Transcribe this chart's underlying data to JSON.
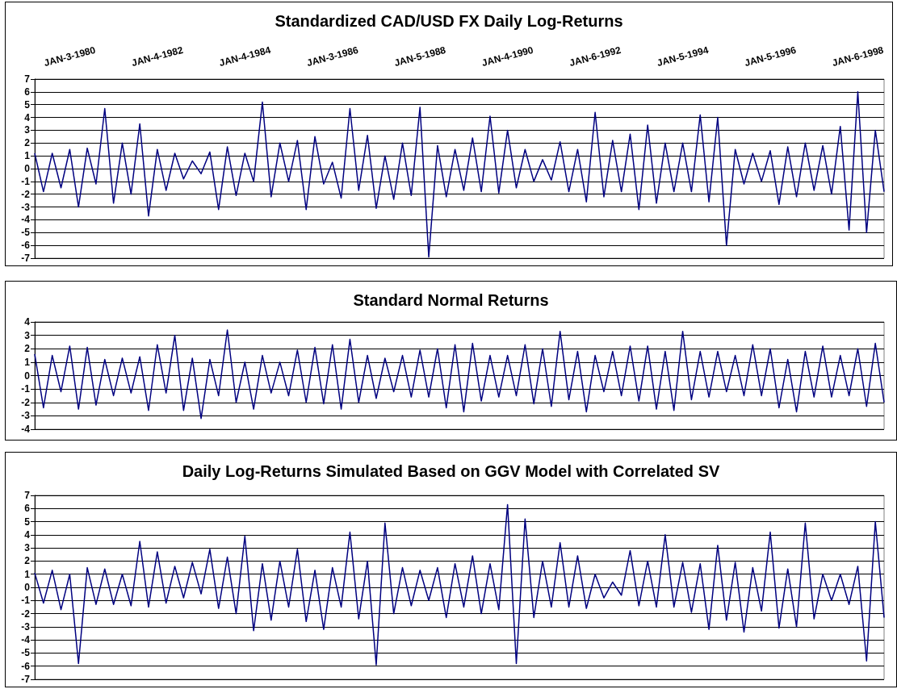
{
  "chart_data": [
    {
      "type": "line",
      "title": "Standardized CAD/USD FX Daily Log-Returns",
      "categories": [
        null,
        null,
        null,
        null,
        "JAN-3-1980",
        null,
        null,
        null,
        null,
        null,
        null,
        null,
        null,
        null,
        "JAN-4-1982",
        null,
        null,
        null,
        null,
        null,
        null,
        null,
        null,
        null,
        "JAN-4-1984",
        null,
        null,
        null,
        null,
        null,
        null,
        null,
        null,
        null,
        "JAN-3-1986",
        null,
        null,
        null,
        null,
        null,
        null,
        null,
        null,
        null,
        "JAN-5-1988",
        null,
        null,
        null,
        null,
        null,
        null,
        null,
        null,
        null,
        "JAN-4-1990",
        null,
        null,
        null,
        null,
        null,
        null,
        null,
        null,
        null,
        "JAN-6-1992",
        null,
        null,
        null,
        null,
        null,
        null,
        null,
        null,
        null,
        "JAN-5-1994",
        null,
        null,
        null,
        null,
        null,
        null,
        null,
        null,
        null,
        "JAN-5-1996",
        null,
        null,
        null,
        null,
        null,
        null,
        null,
        null,
        null,
        "JAN-6-1998",
        null,
        null,
        null
      ],
      "series": [
        {
          "color": "#000080",
          "values": [
            1.2,
            -1.8,
            1.2,
            -1.5,
            1.5,
            -3.0,
            1.6,
            -1.2,
            4.7,
            -2.7,
            2.0,
            -2.0,
            3.5,
            -3.7,
            1.5,
            -1.7,
            1.2,
            -0.8,
            0.6,
            -0.4,
            1.3,
            -3.2,
            1.7,
            -2.1,
            1.2,
            -1.0,
            5.2,
            -2.2,
            2.0,
            -1.0,
            2.2,
            -3.2,
            2.5,
            -1.2,
            0.5,
            -2.3,
            4.7,
            -1.7,
            2.6,
            -3.1,
            1.0,
            -2.4,
            2.0,
            -2.1,
            4.8,
            -6.9,
            1.8,
            -2.2,
            1.5,
            -1.7,
            2.4,
            -1.8,
            4.1,
            -1.9,
            3.0,
            -1.5,
            1.5,
            -1.0,
            0.7,
            -0.9,
            2.1,
            -1.8,
            1.5,
            -2.6,
            4.4,
            -2.2,
            2.2,
            -1.8,
            2.7,
            -3.2,
            3.4,
            -2.7,
            2.0,
            -1.8,
            2.0,
            -1.8,
            4.2,
            -2.6,
            4.0,
            -6.0,
            1.5,
            -1.2,
            1.2,
            -1.0,
            1.4,
            -2.8,
            1.7,
            -2.2,
            2.0,
            -1.7,
            1.8,
            -2.0,
            3.3,
            -4.8,
            6.0,
            -5.0,
            3.0,
            -1.8
          ]
        }
      ],
      "ylim": [
        -7,
        7
      ],
      "yticks": [
        -7,
        -6,
        -5,
        -4,
        -3,
        -2,
        -1,
        0,
        1,
        2,
        3,
        4,
        5,
        6,
        7
      ],
      "grid": "y"
    },
    {
      "type": "line",
      "title": "Standard Normal Returns",
      "categories": [
        null,
        null,
        null,
        null,
        null,
        null,
        null,
        null,
        null,
        null,
        null,
        null,
        null,
        null,
        null,
        null,
        null,
        null,
        null,
        null,
        null,
        null,
        null,
        null,
        null,
        null,
        null,
        null,
        null,
        null,
        null,
        null,
        null,
        null,
        null,
        null,
        null,
        null,
        null,
        null,
        null,
        null,
        null,
        null,
        null,
        null,
        null,
        null,
        null,
        null,
        null,
        null,
        null,
        null,
        null,
        null,
        null,
        null,
        null,
        null,
        null,
        null,
        null,
        null,
        null,
        null,
        null,
        null,
        null,
        null,
        null,
        null,
        null,
        null,
        null,
        null,
        null,
        null,
        null,
        null,
        null,
        null,
        null,
        null,
        null,
        null,
        null,
        null,
        null,
        null,
        null,
        null,
        null,
        null,
        null,
        null,
        null,
        null
      ],
      "series": [
        {
          "color": "#000080",
          "values": [
            1.6,
            -2.4,
            1.5,
            -1.2,
            2.2,
            -2.5,
            2.1,
            -2.2,
            1.2,
            -1.5,
            1.3,
            -1.3,
            1.4,
            -2.6,
            2.3,
            -1.3,
            3.0,
            -2.6,
            1.3,
            -3.2,
            1.2,
            -1.5,
            3.4,
            -2.0,
            1.0,
            -2.5,
            1.5,
            -1.3,
            1.0,
            -1.5,
            1.9,
            -2.0,
            2.1,
            -2.1,
            2.3,
            -2.5,
            2.7,
            -2.0,
            1.5,
            -1.7,
            1.3,
            -1.2,
            1.5,
            -1.6,
            1.9,
            -1.6,
            2.0,
            -2.4,
            2.3,
            -2.7,
            2.4,
            -1.9,
            1.5,
            -1.6,
            1.5,
            -1.5,
            2.3,
            -2.1,
            2.0,
            -2.3,
            3.3,
            -1.8,
            1.8,
            -2.7,
            1.5,
            -1.2,
            1.8,
            -1.5,
            2.2,
            -1.9,
            2.2,
            -2.5,
            1.8,
            -2.6,
            3.3,
            -1.8,
            1.8,
            -1.6,
            1.8,
            -1.2,
            1.5,
            -1.5,
            2.3,
            -1.5,
            2.0,
            -2.4,
            1.2,
            -2.7,
            1.8,
            -1.6,
            2.2,
            -1.6,
            1.5,
            -1.5,
            2.0,
            -2.3,
            2.4,
            -2.0
          ]
        }
      ],
      "ylim": [
        -4,
        4
      ],
      "yticks": [
        -4,
        -3,
        -2,
        -1,
        0,
        1,
        2,
        3,
        4
      ],
      "grid": "y",
      "tick_labels": "y"
    },
    {
      "type": "line",
      "title": "Daily Log-Returns Simulated Based on GGV Model with Correlated SV",
      "categories": [
        null,
        null,
        null,
        null,
        null,
        null,
        null,
        null,
        null,
        null,
        null,
        null,
        null,
        null,
        null,
        null,
        null,
        null,
        null,
        null,
        null,
        null,
        null,
        null,
        null,
        null,
        null,
        null,
        null,
        null,
        null,
        null,
        null,
        null,
        null,
        null,
        null,
        null,
        null,
        null,
        null,
        null,
        null,
        null,
        null,
        null,
        null,
        null,
        null,
        null,
        null,
        null,
        null,
        null,
        null,
        null,
        null,
        null,
        null,
        null,
        null,
        null,
        null,
        null,
        null,
        null,
        null,
        null,
        null,
        null,
        null,
        null,
        null,
        null,
        null,
        null,
        null,
        null,
        null,
        null,
        null,
        null,
        null,
        null,
        null,
        null,
        null,
        null,
        null,
        null,
        null,
        null,
        null,
        null,
        null,
        null,
        null,
        null
      ],
      "series": [
        {
          "color": "#000080",
          "values": [
            1.1,
            -1.2,
            1.3,
            -1.7,
            1.0,
            -5.8,
            1.5,
            -1.3,
            1.4,
            -1.3,
            1.0,
            -1.4,
            3.5,
            -1.5,
            2.7,
            -1.2,
            1.6,
            -0.8,
            1.9,
            -0.5,
            2.9,
            -1.6,
            2.3,
            -2.0,
            3.9,
            -3.3,
            1.8,
            -2.5,
            2.0,
            -1.5,
            2.9,
            -2.6,
            1.3,
            -3.2,
            1.5,
            -1.5,
            4.2,
            -2.4,
            2.0,
            -5.9,
            4.9,
            -2.0,
            1.5,
            -1.4,
            1.3,
            -1.0,
            1.5,
            -2.3,
            1.8,
            -1.5,
            2.4,
            -2.0,
            1.8,
            -1.7,
            6.3,
            -5.8,
            5.2,
            -2.3,
            2.0,
            -1.5,
            3.4,
            -1.5,
            2.4,
            -1.6,
            1.0,
            -0.8,
            0.4,
            -0.6,
            2.8,
            -1.4,
            2.0,
            -1.5,
            4.0,
            -1.5,
            1.9,
            -1.9,
            1.8,
            -3.2,
            3.2,
            -2.5,
            1.9,
            -3.4,
            1.5,
            -1.8,
            4.2,
            -3.1,
            1.4,
            -3.0,
            4.9,
            -2.4,
            1.0,
            -1.0,
            1.0,
            -1.3,
            1.6,
            -5.6,
            5.0,
            -2.3
          ]
        }
      ],
      "ylim": [
        -7,
        7
      ],
      "yticks": [
        -7,
        -6,
        -5,
        -4,
        -3,
        -2,
        -1,
        0,
        1,
        2,
        3,
        4,
        5,
        6,
        7
      ],
      "grid": "y",
      "tick_labels": "y"
    }
  ]
}
